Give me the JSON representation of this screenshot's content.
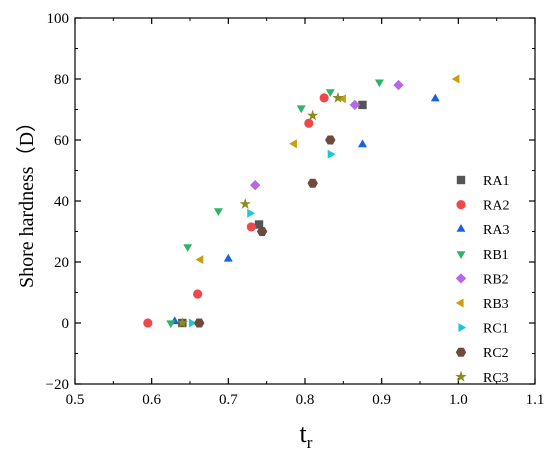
{
  "chart_data": {
    "type": "scatter",
    "xlabel": "t",
    "xlabel_sub": "r",
    "ylabel": "Shore hardness（D）",
    "xlim": [
      0.5,
      1.1
    ],
    "ylim": [
      -20,
      100
    ],
    "xticks": [
      "0.5",
      "0.6",
      "0.7",
      "0.8",
      "0.9",
      "1.0",
      "1.1"
    ],
    "yticks": [
      "−20",
      "0",
      "20",
      "40",
      "60",
      "80",
      "100"
    ],
    "grid": false,
    "legend_position": "right",
    "series": [
      {
        "name": "RA1",
        "marker": "square",
        "color": "#555555",
        "points": [
          [
            0.64,
            0
          ],
          [
            0.74,
            32.3
          ],
          [
            0.875,
            71.5
          ]
        ]
      },
      {
        "name": "RA2",
        "marker": "circle",
        "color": "#f0474a",
        "points": [
          [
            0.595,
            0
          ],
          [
            0.66,
            9.5
          ],
          [
            0.73,
            31.5
          ],
          [
            0.805,
            65.5
          ],
          [
            0.825,
            73.8
          ]
        ]
      },
      {
        "name": "RA3",
        "marker": "triangle-up",
        "color": "#1a63d8",
        "points": [
          [
            0.63,
            0.5
          ],
          [
            0.7,
            21
          ],
          [
            0.875,
            58.5
          ],
          [
            0.97,
            73.5
          ]
        ]
      },
      {
        "name": "RB1",
        "marker": "triangle-down",
        "color": "#2fb36a",
        "points": [
          [
            0.625,
            0
          ],
          [
            0.647,
            25
          ],
          [
            0.687,
            36.8
          ],
          [
            0.795,
            70.5
          ],
          [
            0.833,
            75.8
          ],
          [
            0.897,
            79
          ]
        ]
      },
      {
        "name": "RB2",
        "marker": "diamond",
        "color": "#b36ae6",
        "points": [
          [
            0.735,
            45.2
          ],
          [
            0.865,
            71.5
          ],
          [
            0.922,
            78
          ]
        ]
      },
      {
        "name": "RB3",
        "marker": "triangle-left",
        "color": "#c9a00b",
        "points": [
          [
            0.664,
            20.8
          ],
          [
            0.786,
            58.8
          ],
          [
            0.85,
            73.5
          ],
          [
            0.998,
            80
          ]
        ]
      },
      {
        "name": "RC1",
        "marker": "triangle-right",
        "color": "#1cc7d8",
        "points": [
          [
            0.652,
            0
          ],
          [
            0.728,
            36
          ],
          [
            0.833,
            55.3
          ]
        ]
      },
      {
        "name": "RC2",
        "marker": "hexagon",
        "color": "#6e4a3c",
        "points": [
          [
            0.662,
            0
          ],
          [
            0.744,
            30
          ],
          [
            0.81,
            45.8
          ],
          [
            0.833,
            60
          ]
        ]
      },
      {
        "name": "RC3",
        "marker": "star",
        "color": "#8b8b1f",
        "points": [
          [
            0.64,
            0
          ],
          [
            0.722,
            39
          ],
          [
            0.81,
            68
          ],
          [
            0.843,
            73.8
          ]
        ]
      }
    ]
  }
}
